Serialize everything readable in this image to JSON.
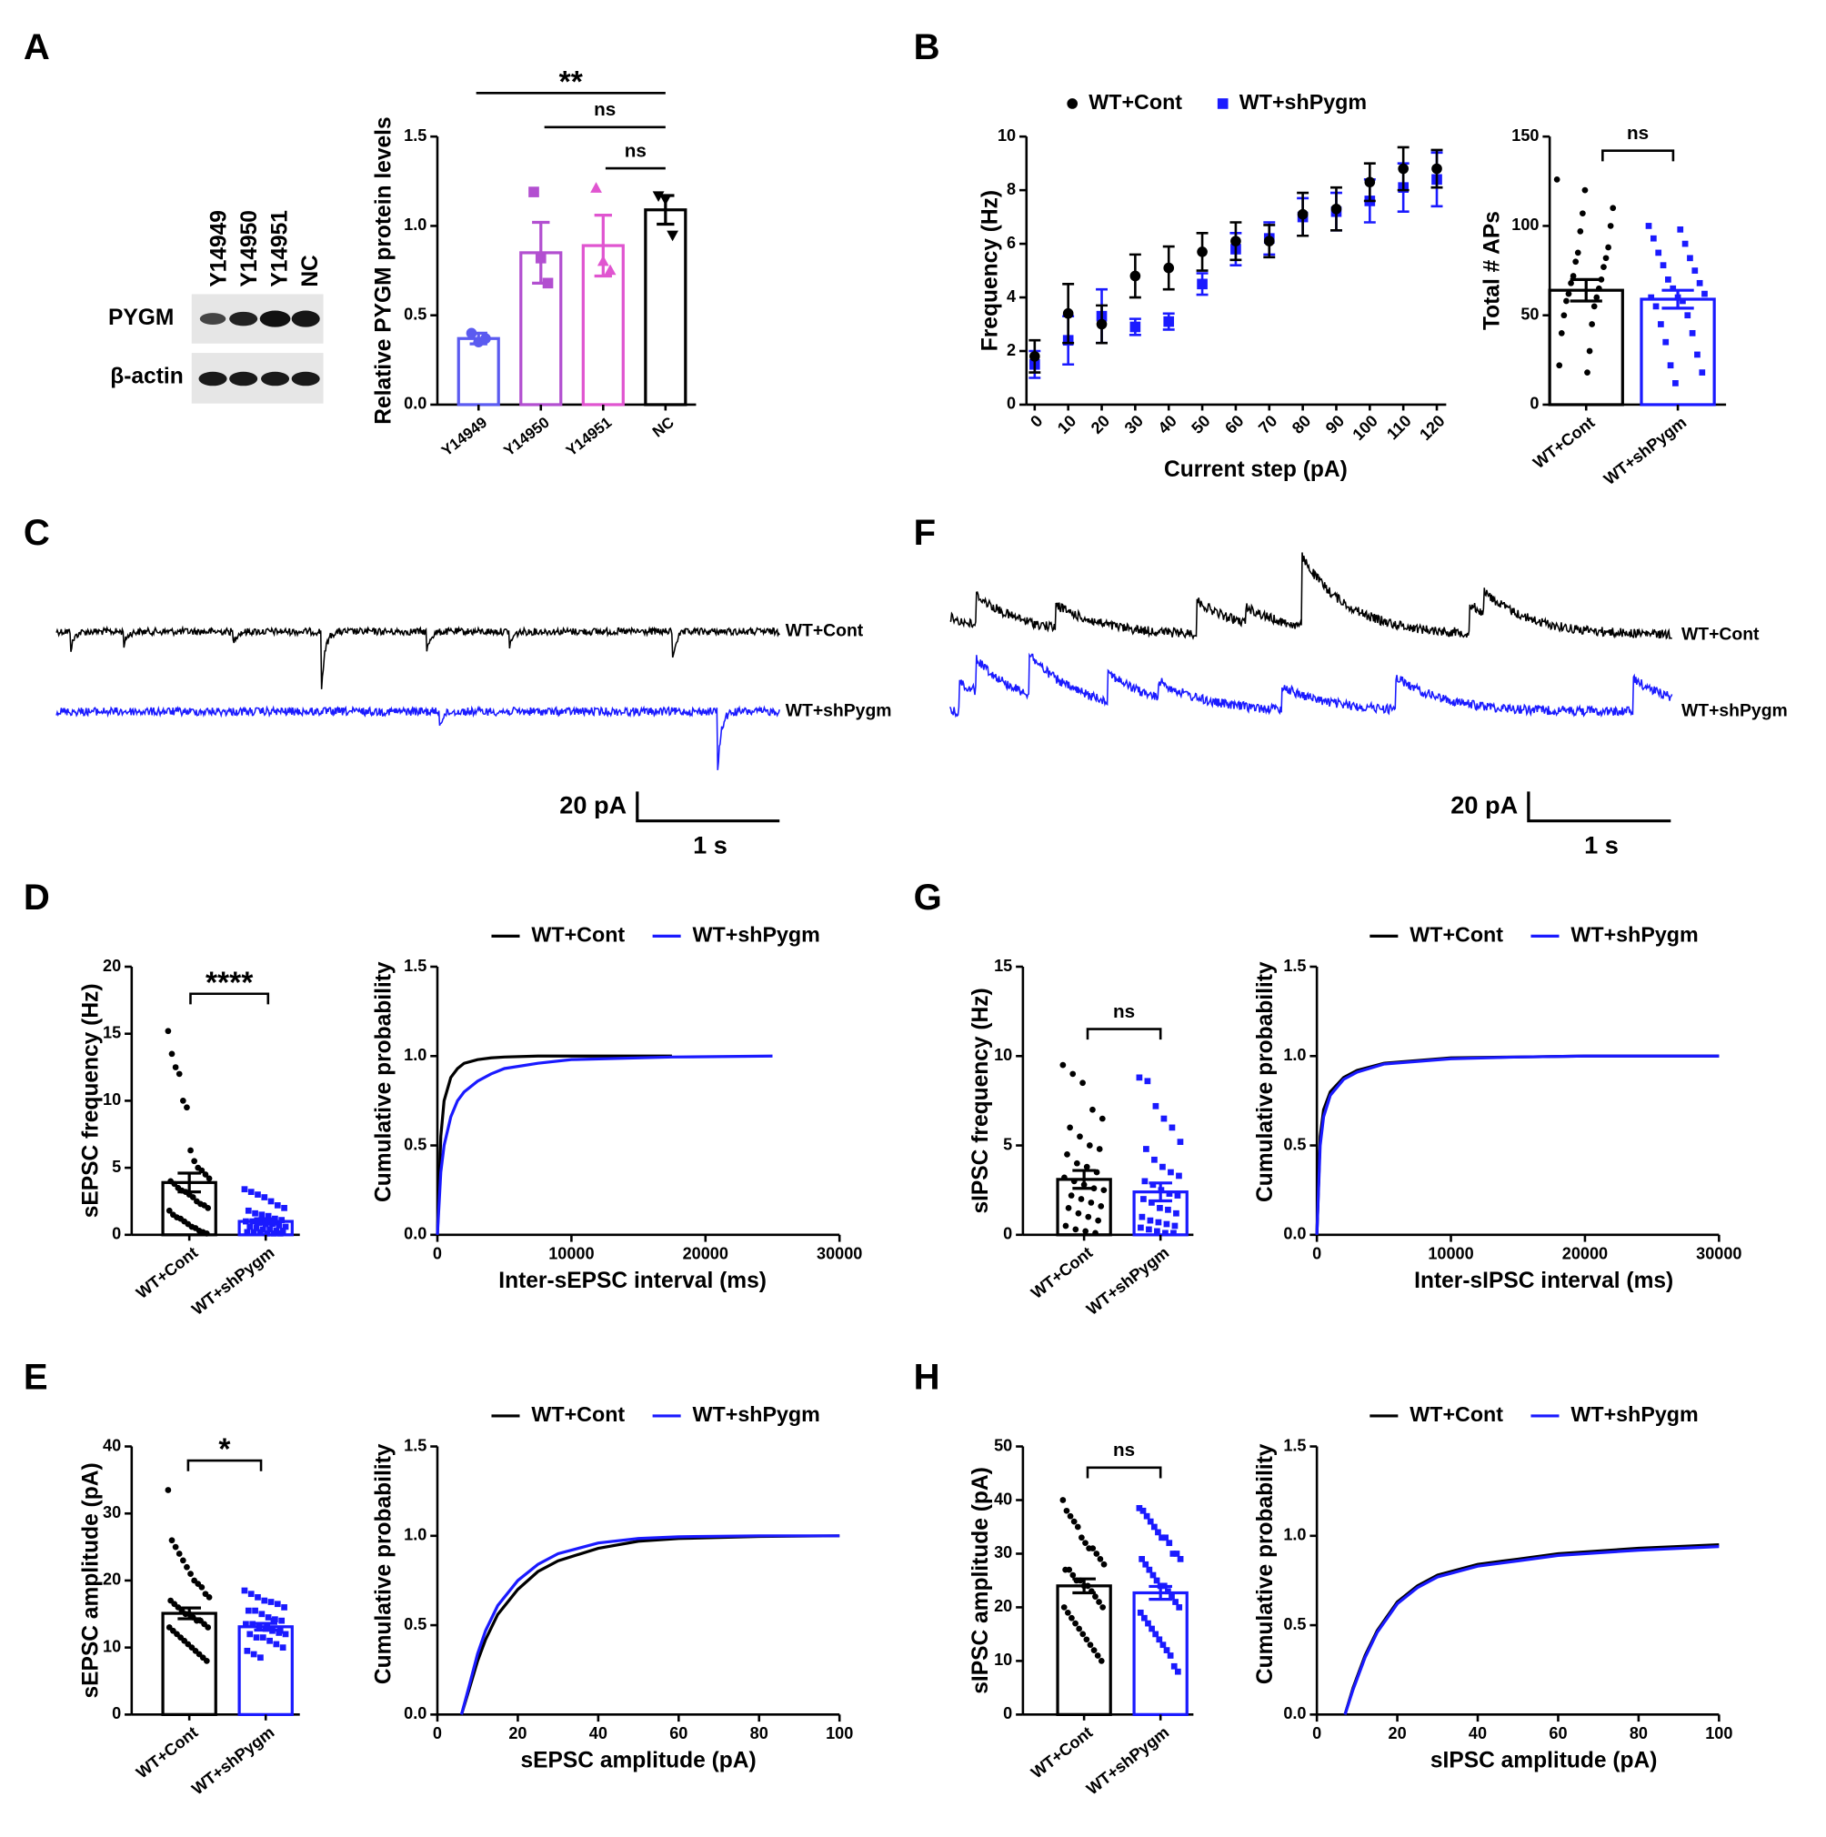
{
  "panels": [
    "A",
    "B",
    "C",
    "F",
    "D",
    "G",
    "E",
    "H"
  ],
  "blot": {
    "lanes": [
      "Y14949",
      "Y14950",
      "Y14951",
      "NC"
    ],
    "rows": [
      "PYGM",
      "β-actin"
    ]
  },
  "traces": [
    {
      "series": [
        {
          "name": "WT+Cont",
          "color": "#000000"
        },
        {
          "name": "WT+shPygm",
          "color": "#1a1aff"
        }
      ],
      "scale_y": "20 pA",
      "scale_x": "1 s"
    },
    {
      "series": [
        {
          "name": "WT+Cont",
          "color": "#000000"
        },
        {
          "name": "WT+shPygm",
          "color": "#1a1aff"
        }
      ],
      "scale_y": "20 pA",
      "scale_x": "1 s"
    }
  ],
  "chart_data": [
    {
      "type": "bar",
      "ylabel": "Relative PYGM protein levels",
      "categories": [
        "Y14949",
        "Y14950",
        "Y14951",
        "NC"
      ],
      "values": [
        0.37,
        0.85,
        0.89,
        1.09
      ],
      "errors": [
        0.03,
        0.17,
        0.17,
        0.08
      ],
      "colors": [
        "#5b5bf0",
        "#b24fd0",
        "#e055d0",
        "#000000"
      ],
      "markers": [
        "circle",
        "square",
        "triangle",
        "triangle-down"
      ],
      "points": [
        [
          0.4,
          0.35,
          0.37
        ],
        [
          1.19,
          0.82,
          0.68
        ],
        [
          1.21,
          0.8,
          0.75
        ],
        [
          1.17,
          1.15,
          0.95
        ]
      ],
      "ylim": [
        0,
        1.5
      ],
      "yticks": [
        {
          "value": 0,
          "label": "0.0"
        },
        {
          "value": 0.5,
          "label": "0.5"
        },
        {
          "value": 1,
          "label": "1.0"
        },
        {
          "value": 1.5,
          "label": "1.5"
        }
      ],
      "annotations": [
        "**",
        "ns",
        "ns"
      ]
    },
    {
      "type": "scatter",
      "xlabel": "Current step (pA)",
      "ylabel": "Frequency (Hz)",
      "categories": [
        "0",
        "10",
        "20",
        "30",
        "40",
        "50",
        "60",
        "70",
        "80",
        "90",
        "100",
        "110",
        "120"
      ],
      "series": [
        {
          "name": "WT+Cont",
          "color": "#000000",
          "marker": "circle",
          "values": [
            1.8,
            3.4,
            3.0,
            4.8,
            5.1,
            5.7,
            6.1,
            6.1,
            7.1,
            7.3,
            8.3,
            8.8,
            8.8
          ],
          "errors": [
            0.6,
            1.1,
            0.7,
            0.8,
            0.8,
            0.7,
            0.7,
            0.6,
            0.8,
            0.8,
            0.7,
            0.8,
            0.7
          ]
        },
        {
          "name": "WT+shPygm",
          "color": "#1a1aff",
          "marker": "square",
          "values": [
            1.5,
            2.4,
            3.3,
            2.9,
            3.1,
            4.5,
            5.8,
            6.2,
            7.0,
            7.2,
            7.6,
            8.1,
            8.4
          ],
          "errors": [
            0.5,
            0.9,
            1.0,
            0.3,
            0.3,
            0.4,
            0.6,
            0.6,
            0.7,
            0.7,
            0.8,
            0.9,
            1.0
          ]
        }
      ],
      "ylim": [
        0,
        10
      ],
      "yticks": [
        0,
        2,
        4,
        6,
        8,
        10
      ]
    },
    {
      "type": "bar",
      "ylabel": "Total # APs",
      "categories": [
        "WT+Cont",
        "WT+shPygm"
      ],
      "values": [
        64,
        59
      ],
      "errors": [
        6,
        5
      ],
      "colors": [
        "#000000",
        "#1a1aff"
      ],
      "markers": [
        "circle",
        "square"
      ],
      "points": [
        [
          126,
          120,
          110,
          107,
          100,
          97,
          88,
          85,
          82,
          80,
          77,
          72,
          70,
          68,
          65,
          62,
          60,
          58,
          55,
          50,
          45,
          40,
          30,
          22,
          18
        ],
        [
          100,
          98,
          93,
          90,
          85,
          82,
          78,
          75,
          70,
          68,
          65,
          62,
          60,
          60,
          58,
          55,
          50,
          45,
          40,
          35,
          28,
          22,
          18,
          12
        ]
      ],
      "ylim": [
        0,
        150
      ],
      "yticks": [
        0,
        50,
        100,
        150
      ],
      "annotations": [
        "ns"
      ]
    },
    {
      "type": "bar",
      "ylabel": "sEPSC frequency (Hz)",
      "categories": [
        "WT+Cont",
        "WT+shPygm"
      ],
      "values": [
        3.9,
        1.0
      ],
      "errors": [
        0.7,
        0.2
      ],
      "colors": [
        "#000000",
        "#1a1aff"
      ],
      "markers": [
        "circle",
        "square"
      ],
      "points": [
        [
          15.2,
          13.5,
          12.5,
          12.0,
          10.0,
          9.5,
          6.3,
          5.5,
          5.0,
          4.8,
          4.5,
          4.2,
          4.0,
          3.8,
          3.5,
          3.3,
          3.2,
          3.0,
          2.8,
          2.5,
          2.3,
          2.2,
          2.0,
          1.8,
          1.5,
          1.3,
          1.2,
          1.0,
          0.8,
          0.6,
          0.5,
          0.3,
          0.2,
          0.1
        ],
        [
          3.4,
          3.2,
          3.0,
          2.8,
          2.5,
          2.2,
          2.0,
          1.8,
          1.6,
          1.5,
          1.4,
          1.2,
          1.1,
          1.0,
          1.0,
          0.9,
          0.8,
          0.8,
          0.7,
          0.6,
          0.6,
          0.5,
          0.4,
          0.4,
          0.3,
          0.3,
          0.2,
          0.2,
          0.2,
          0.1,
          0.1,
          0.1
        ]
      ],
      "ylim": [
        0,
        20
      ],
      "yticks": [
        0,
        5,
        10,
        15,
        20
      ],
      "annotations": [
        "****"
      ]
    },
    {
      "type": "line",
      "xlabel": "Inter-sEPSC  interval (ms)",
      "ylabel": "Cumulative  probability",
      "x": [
        0,
        250,
        500,
        1000,
        1500,
        2000,
        3000,
        4000,
        5000,
        7500,
        10000,
        17500,
        25000
      ],
      "series": [
        {
          "name": "WT+Cont",
          "color": "#000000",
          "values": [
            0,
            0.55,
            0.75,
            0.88,
            0.93,
            0.96,
            0.98,
            0.99,
            0.995,
            1.0,
            1.0,
            1.0,
            null
          ]
        },
        {
          "name": "WT+shPygm",
          "color": "#1a1aff",
          "values": [
            0,
            0.35,
            0.5,
            0.66,
            0.75,
            0.8,
            0.86,
            0.9,
            0.93,
            0.96,
            0.98,
            0.995,
            1.0
          ]
        }
      ],
      "xlim": [
        0,
        30000
      ],
      "xticks": [
        0,
        10000,
        20000,
        30000
      ],
      "ylim": [
        0,
        1.5
      ],
      "yticks": [
        {
          "value": 0,
          "label": "0.0"
        },
        {
          "value": 0.5,
          "label": "0.5"
        },
        {
          "value": 1,
          "label": "1.0"
        },
        {
          "value": 1.5,
          "label": "1.5"
        }
      ]
    },
    {
      "type": "bar",
      "ylabel": "sIPSC frequency (Hz)",
      "categories": [
        "WT+Cont",
        "WT+shPygm"
      ],
      "values": [
        3.1,
        2.4
      ],
      "errors": [
        0.5,
        0.5
      ],
      "colors": [
        "#000000",
        "#1a1aff"
      ],
      "markers": [
        "circle",
        "square"
      ],
      "points": [
        [
          9.5,
          9.0,
          8.5,
          7.0,
          6.5,
          6.0,
          5.5,
          5.0,
          4.8,
          4.5,
          4.0,
          3.8,
          3.5,
          3.2,
          3.0,
          2.8,
          2.6,
          2.5,
          2.2,
          2.0,
          1.8,
          1.6,
          1.5,
          1.2,
          1.0,
          0.8,
          0.5,
          0.3,
          0.2,
          0.1
        ],
        [
          8.8,
          8.6,
          7.2,
          6.5,
          6.0,
          5.2,
          4.8,
          4.2,
          3.8,
          3.5,
          3.3,
          3.0,
          2.8,
          2.5,
          2.3,
          2.2,
          2.0,
          1.8,
          1.5,
          1.4,
          1.2,
          1.0,
          0.8,
          0.7,
          0.6,
          0.5,
          0.4,
          0.3,
          0.2,
          0.1,
          0.1
        ]
      ],
      "ylim": [
        0,
        15
      ],
      "yticks": [
        0,
        5,
        10,
        15
      ],
      "annotations": [
        "ns"
      ]
    },
    {
      "type": "line",
      "xlabel": "Inter-sIPSC interval (ms)",
      "ylabel": "Cumulative  probability",
      "x": [
        0,
        250,
        500,
        1000,
        2000,
        3000,
        5000,
        10000,
        15000,
        20000,
        30000
      ],
      "series": [
        {
          "name": "WT+Cont",
          "color": "#000000",
          "values": [
            0,
            0.55,
            0.7,
            0.8,
            0.88,
            0.92,
            0.96,
            0.99,
            0.995,
            1.0,
            1.0
          ]
        },
        {
          "name": "WT+shPygm",
          "color": "#1a1aff",
          "values": [
            0,
            0.5,
            0.66,
            0.78,
            0.87,
            0.91,
            0.955,
            0.985,
            0.995,
            1.0,
            1.0
          ]
        }
      ],
      "xlim": [
        0,
        30000
      ],
      "xticks": [
        0,
        10000,
        20000,
        30000
      ],
      "ylim": [
        0,
        1.5
      ],
      "yticks": [
        {
          "value": 0,
          "label": "0.0"
        },
        {
          "value": 0.5,
          "label": "0.5"
        },
        {
          "value": 1,
          "label": "1.0"
        },
        {
          "value": 1.5,
          "label": "1.5"
        }
      ]
    },
    {
      "type": "bar",
      "ylabel": "sEPSC amplitude (pA)",
      "categories": [
        "WT+Cont",
        "WT+shPygm"
      ],
      "values": [
        15.1,
        13.1
      ],
      "errors": [
        0.8,
        0.5
      ],
      "colors": [
        "#000000",
        "#1a1aff"
      ],
      "markers": [
        "circle",
        "square"
      ],
      "points": [
        [
          33.5,
          26,
          25,
          24,
          23,
          22,
          21,
          20,
          19.5,
          19,
          18,
          17.5,
          17,
          16.5,
          16,
          15.5,
          15,
          15,
          14.5,
          14,
          14,
          13.5,
          13,
          13,
          12.5,
          12,
          11.5,
          11,
          10.5,
          10,
          9.5,
          9,
          8.5,
          8
        ],
        [
          18.5,
          18,
          17.5,
          17,
          16.8,
          16.5,
          16,
          15.5,
          15.5,
          15,
          14.5,
          14.2,
          14,
          13.5,
          13.5,
          13,
          12.8,
          12.5,
          12.2,
          12,
          12,
          11.5,
          11.5,
          11,
          10.5,
          10,
          9.5,
          9,
          8.5,
          13,
          14,
          12.5
        ]
      ],
      "ylim": [
        0,
        40
      ],
      "yticks": [
        0,
        10,
        20,
        30,
        40
      ],
      "annotations": [
        "*"
      ]
    },
    {
      "type": "line",
      "xlabel": "sEPSC amplitude (pA)",
      "ylabel": "Cumulative  probability",
      "x": [
        6,
        8,
        10,
        12,
        15,
        20,
        25,
        30,
        40,
        50,
        60,
        80,
        100
      ],
      "series": [
        {
          "name": "WT+Cont",
          "color": "#000000",
          "values": [
            0,
            0.15,
            0.3,
            0.42,
            0.56,
            0.7,
            0.8,
            0.86,
            0.93,
            0.97,
            0.985,
            0.997,
            1.0
          ]
        },
        {
          "name": "WT+shPygm",
          "color": "#1a1aff",
          "values": [
            0,
            0.17,
            0.34,
            0.47,
            0.61,
            0.75,
            0.84,
            0.9,
            0.96,
            0.985,
            0.995,
            1.0,
            1.0
          ]
        }
      ],
      "xlim": [
        0,
        100
      ],
      "xticks": [
        0,
        20,
        40,
        60,
        80,
        100
      ],
      "ylim": [
        0,
        1.5
      ],
      "yticks": [
        {
          "value": 0,
          "label": "0.0"
        },
        {
          "value": 0.5,
          "label": "0.5"
        },
        {
          "value": 1,
          "label": "1.0"
        },
        {
          "value": 1.5,
          "label": "1.5"
        }
      ]
    },
    {
      "type": "bar",
      "ylabel": "sIPSC amplitude (pA)",
      "categories": [
        "WT+Cont",
        "WT+shPygm"
      ],
      "values": [
        24.0,
        22.7
      ],
      "errors": [
        1.3,
        1.2
      ],
      "colors": [
        "#000000",
        "#1a1aff"
      ],
      "markers": [
        "circle",
        "square"
      ],
      "points": [
        [
          40,
          38,
          37,
          36,
          35,
          33,
          32,
          31,
          31,
          30,
          29,
          28,
          27,
          27,
          26,
          25,
          25,
          24,
          24,
          23,
          22,
          21,
          20,
          20,
          19,
          18,
          17,
          16,
          15,
          14,
          13,
          12,
          11,
          10
        ],
        [
          38.5,
          38,
          37,
          36,
          35,
          34,
          33,
          33,
          32,
          30,
          30,
          29,
          29,
          28,
          27,
          26,
          25,
          24,
          24,
          23,
          22,
          21,
          20,
          19,
          18,
          17,
          16,
          15,
          14,
          13,
          12,
          11,
          9,
          8
        ]
      ],
      "ylim": [
        0,
        50
      ],
      "yticks": [
        0,
        10,
        20,
        30,
        40,
        50
      ],
      "annotations": [
        "ns"
      ]
    },
    {
      "type": "line",
      "xlabel": "sIPSC amplitude (pA)",
      "ylabel": "Cumulative  probability",
      "x": [
        7,
        9,
        12,
        15,
        20,
        25,
        30,
        40,
        50,
        60,
        80,
        100
      ],
      "series": [
        {
          "name": "WT+Cont",
          "color": "#000000",
          "values": [
            0,
            0.15,
            0.33,
            0.47,
            0.63,
            0.72,
            0.78,
            0.84,
            0.87,
            0.9,
            0.93,
            0.95
          ]
        },
        {
          "name": "WT+shPygm",
          "color": "#1a1aff",
          "values": [
            0,
            0.14,
            0.32,
            0.46,
            0.62,
            0.71,
            0.77,
            0.83,
            0.86,
            0.89,
            0.92,
            0.94
          ]
        }
      ],
      "xlim": [
        0,
        100
      ],
      "xticks": [
        0,
        20,
        40,
        60,
        80,
        100
      ],
      "ylim": [
        0,
        1.5
      ],
      "yticks": [
        {
          "value": 0,
          "label": "0.0"
        },
        {
          "value": 0.5,
          "label": "0.5"
        },
        {
          "value": 1,
          "label": "1.0"
        },
        {
          "value": 1.5,
          "label": "1.5"
        }
      ]
    }
  ]
}
